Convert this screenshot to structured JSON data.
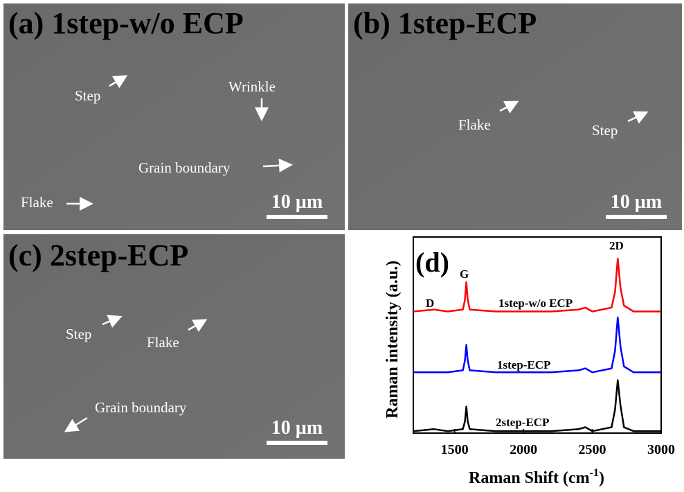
{
  "panels": [
    {
      "label": "(a) 1step-w/o ECP",
      "scale_bar": "10 µm",
      "annotations": [
        "Step",
        "Wrinkle",
        "Grain boundary",
        "Flake"
      ]
    },
    {
      "label": "(b) 1step-ECP",
      "scale_bar": "10 µm",
      "annotations": [
        "Flake",
        "Step"
      ]
    },
    {
      "label": "(c) 2step-ECP",
      "scale_bar": "10 µm",
      "annotations": [
        "Step",
        "Flake",
        "Grain boundary"
      ]
    }
  ],
  "chart_data": {
    "type": "line",
    "title": "(d)",
    "x_label": {
      "text": "Raman Shift (cm",
      "superscript": "-1",
      "suffix": ")"
    },
    "y_label": "Raman intensity (a.u.)",
    "annotations": [
      "D",
      "G",
      "2D"
    ],
    "x": [
      1200,
      1350,
      1450,
      1560,
      1575,
      1585,
      1595,
      1610,
      1800,
      2200,
      2400,
      2450,
      2500,
      2640,
      2665,
      2685,
      2705,
      2730,
      2800,
      3000
    ],
    "series": [
      {
        "name": "1step-w/o ECP",
        "color": "#ff0000",
        "values": [
          6.2,
          6.3,
          6.2,
          6.3,
          6.8,
          7.7,
          6.8,
          6.3,
          6.2,
          6.2,
          6.3,
          6.4,
          6.2,
          6.4,
          7.2,
          8.9,
          7.4,
          6.5,
          6.2,
          6.2
        ]
      },
      {
        "name": "1step-ECP",
        "color": "#0000ff",
        "values": [
          3.1,
          3.1,
          3.1,
          3.2,
          3.7,
          4.5,
          3.7,
          3.2,
          3.1,
          3.1,
          3.2,
          3.3,
          3.1,
          3.3,
          4.2,
          5.9,
          4.4,
          3.4,
          3.1,
          3.1
        ]
      },
      {
        "name": "2step-ECP",
        "color": "#000000",
        "values": [
          0.1,
          0.2,
          0.1,
          0.2,
          0.6,
          1.35,
          0.6,
          0.2,
          0.1,
          0.1,
          0.2,
          0.3,
          0.1,
          0.3,
          1.2,
          2.7,
          1.4,
          0.3,
          0.1,
          0.1
        ]
      }
    ],
    "xlim": [
      1200,
      3000
    ],
    "ylim": [
      0,
      10
    ],
    "xticks": [
      1500,
      2000,
      2500,
      3000
    ],
    "grid": false
  }
}
